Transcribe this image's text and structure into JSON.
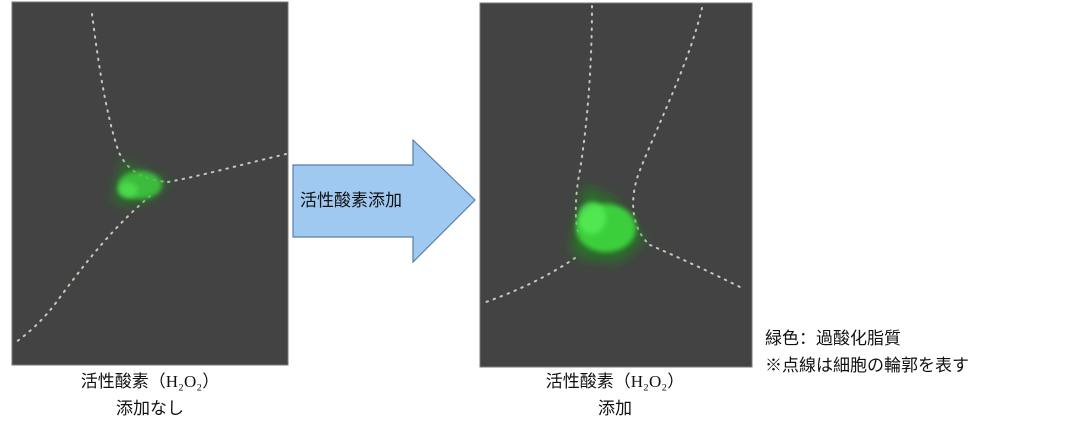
{
  "left_panel": {
    "caption_line1": "活性酸素（H₂O₂）",
    "caption_line2": "添加なし"
  },
  "arrow": {
    "label": "活性酸素添加"
  },
  "right_panel": {
    "caption_line1": "活性酸素（H₂O₂）",
    "caption_line2": "添加"
  },
  "legend": {
    "line1": "緑色：過酸化脂質",
    "line2": "※点線は細胞の輪郭を表す"
  }
}
